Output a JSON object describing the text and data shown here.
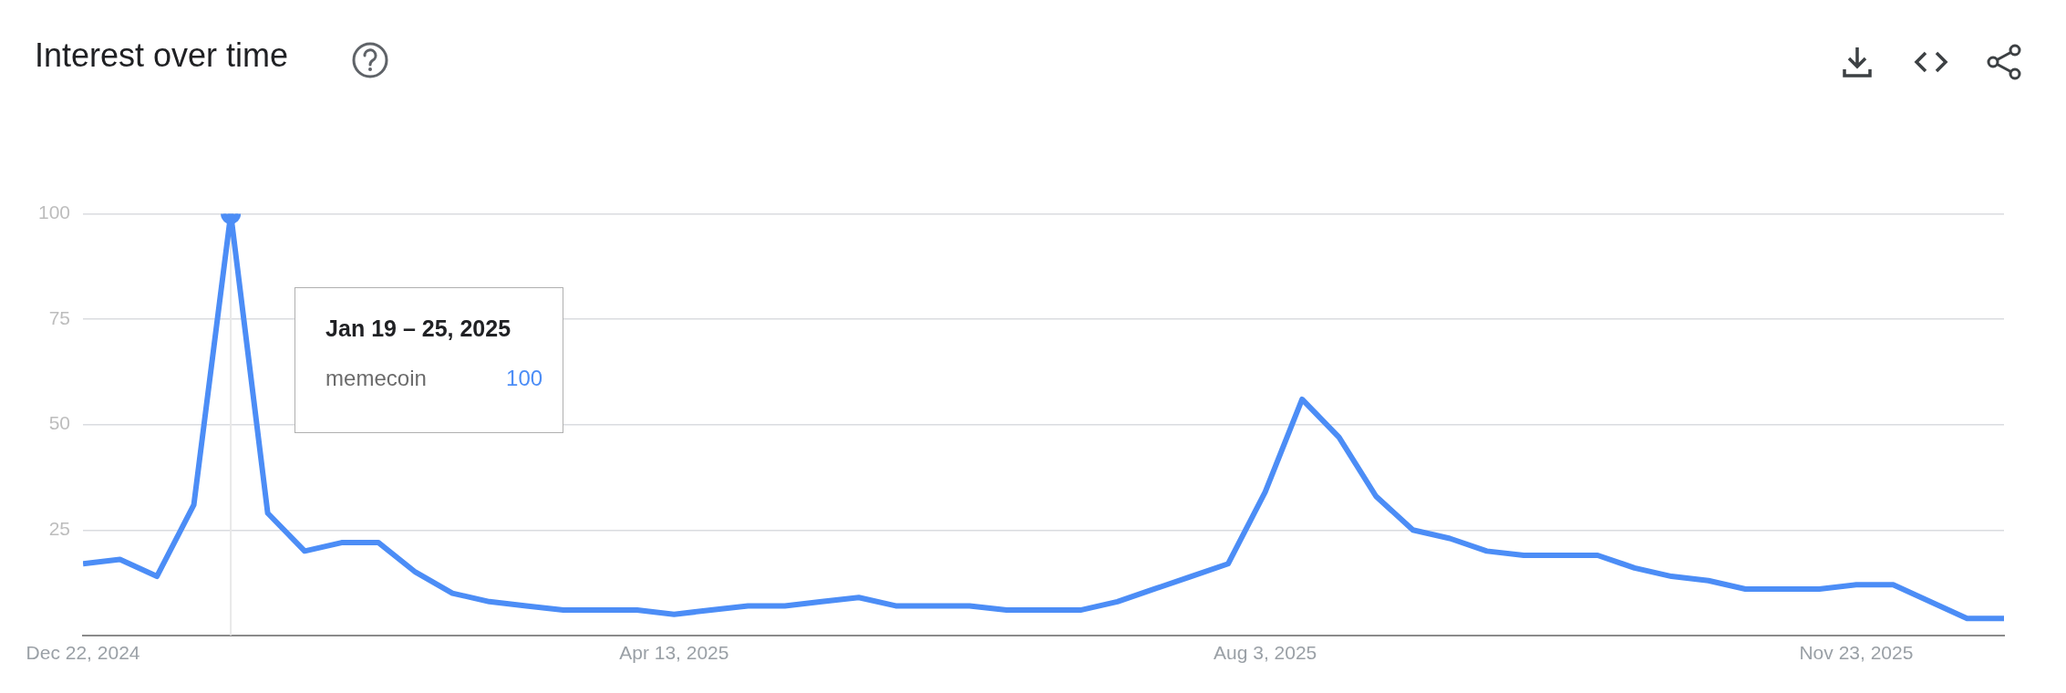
{
  "chart_data": {
    "type": "line",
    "title": "Interest over time",
    "x": [
      "2024-12-22",
      "2024-12-29",
      "2025-01-05",
      "2025-01-12",
      "2025-01-19",
      "2025-01-26",
      "2025-02-02",
      "2025-02-09",
      "2025-02-16",
      "2025-02-23",
      "2025-03-02",
      "2025-03-09",
      "2025-03-16",
      "2025-03-23",
      "2025-03-30",
      "2025-04-06",
      "2025-04-13",
      "2025-04-20",
      "2025-04-27",
      "2025-05-04",
      "2025-05-11",
      "2025-05-18",
      "2025-05-25",
      "2025-06-01",
      "2025-06-08",
      "2025-06-15",
      "2025-06-22",
      "2025-06-29",
      "2025-07-06",
      "2025-07-13",
      "2025-07-20",
      "2025-07-27",
      "2025-08-03",
      "2025-08-10",
      "2025-08-17",
      "2025-08-24",
      "2025-08-31",
      "2025-09-07",
      "2025-09-14",
      "2025-09-21",
      "2025-09-28",
      "2025-10-05",
      "2025-10-12",
      "2025-10-19",
      "2025-10-26",
      "2025-11-02",
      "2025-11-09",
      "2025-11-16",
      "2025-11-23",
      "2025-11-30",
      "2025-12-07",
      "2025-12-14",
      "2025-12-21"
    ],
    "series": [
      {
        "name": "memecoin",
        "color": "#4c8df6",
        "values": [
          17,
          18,
          14,
          31,
          100,
          29,
          20,
          22,
          22,
          15,
          10,
          8,
          7,
          6,
          6,
          6,
          5,
          6,
          7,
          7,
          8,
          9,
          7,
          7,
          7,
          6,
          6,
          6,
          8,
          11,
          14,
          17,
          34,
          56,
          47,
          33,
          25,
          23,
          20,
          19,
          19,
          19,
          16,
          14,
          13,
          11,
          11,
          11,
          12,
          12,
          8,
          4,
          4
        ]
      }
    ],
    "xlim": [
      "2024-12-22",
      "2025-12-21"
    ],
    "xticks": [
      {
        "value": "2024-12-22",
        "label": "Dec 22, 2024"
      },
      {
        "value": "2025-04-13",
        "label": "Apr 13, 2025"
      },
      {
        "value": "2025-08-03",
        "label": "Aug 3, 2025"
      },
      {
        "value": "2025-11-23",
        "label": "Nov 23, 2025"
      }
    ],
    "ylim": [
      0,
      100
    ],
    "yticks": [
      25,
      50,
      75,
      100
    ],
    "grid": "y",
    "legend": false,
    "marker": "none",
    "ref_lines": [
      {
        "axis": "x",
        "value": "2025-01-19",
        "color": "#e8e8e8"
      }
    ],
    "annotations": [
      "Jan 19 – 25, 2025",
      "100"
    ]
  }
}
